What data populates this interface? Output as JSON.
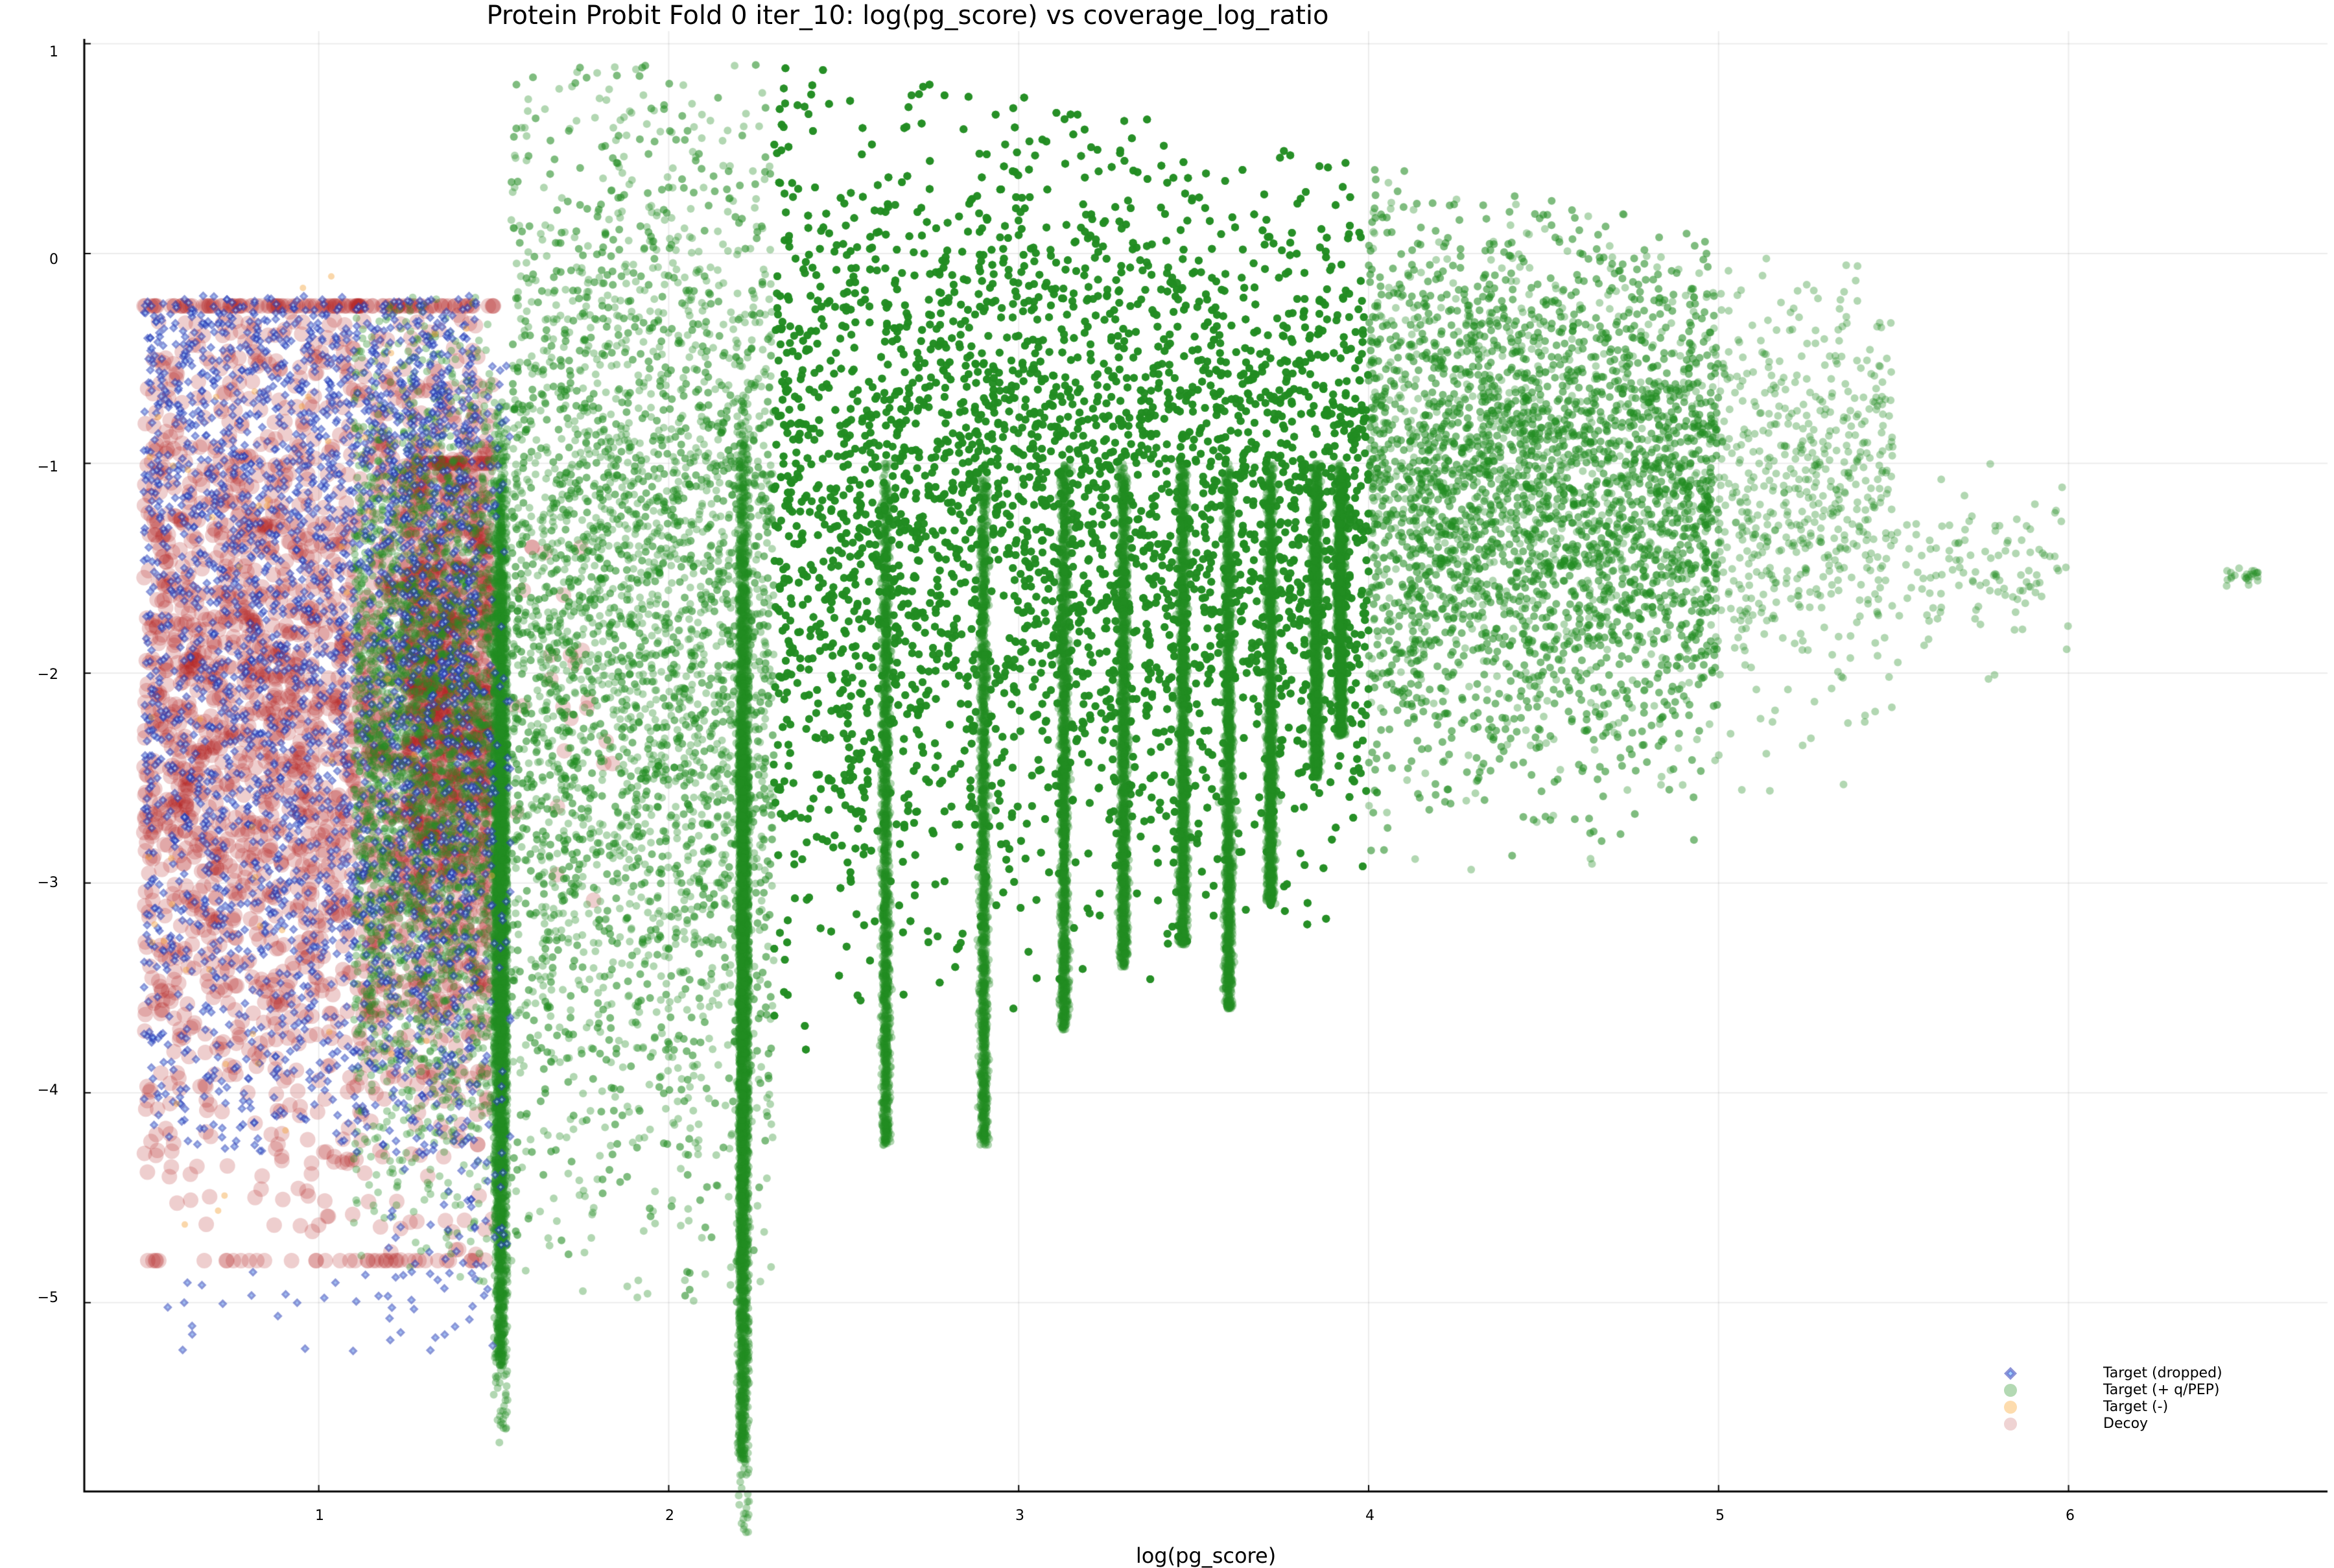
{
  "chart_data": {
    "type": "scatter",
    "title": "Protein Probit Fold 0 iter_10: log(pg_score) vs coverage_log_ratio",
    "xlabel": "log(pg_score)",
    "ylabel": "",
    "xlim": [
      0.33,
      6.74
    ],
    "ylim": [
      -5.9,
      1.06
    ],
    "x_ticks": [
      1,
      2,
      3,
      4,
      5,
      6
    ],
    "y_ticks": [
      1,
      0,
      -1,
      -2,
      -3,
      -4,
      -5
    ],
    "x_tick_labels": [
      "1",
      "2",
      "3",
      "4",
      "5",
      "6"
    ],
    "y_tick_labels": [
      "1",
      "0",
      "−1",
      "−2",
      "−3",
      "−4",
      "−5"
    ],
    "grid": true,
    "legend_position": "bottom-right",
    "series": [
      {
        "name": "Target (dropped)",
        "marker": "diamond",
        "color": "#2a3fb8",
        "alpha": 0.55,
        "approx_x_range": [
          0.5,
          1.6
        ],
        "approx_y_range": [
          -5.3,
          -0.1
        ],
        "clusters": [
          {
            "x": [
              0.5,
              1.45
            ],
            "y": [
              -4.3,
              -0.2
            ],
            "n": 2600
          },
          {
            "x": [
              1.2,
              1.55
            ],
            "y": [
              -5.0,
              -0.5
            ],
            "n": 350
          },
          {
            "x": [
              0.55,
              1.5
            ],
            "y": [
              -5.25,
              -4.85
            ],
            "n": 40
          }
        ]
      },
      {
        "name": "Target (+ q/PEP)",
        "marker": "circle",
        "color": "#228b22",
        "alpha": 0.35,
        "approx_x_range": [
          0.9,
          6.55
        ],
        "approx_y_range": [
          -5.75,
          0.85
        ],
        "clusters": [
          {
            "x": [
              1.1,
              1.5
            ],
            "y": [
              -4.5,
              -0.5
            ],
            "n": 3000
          },
          {
            "x": [
              1.5,
              1.54
            ],
            "y": [
              -5.3,
              -1.0
            ],
            "n": 2500
          },
          {
            "x": [
              1.55,
              2.3
            ],
            "y": [
              -4.6,
              0.6
            ],
            "n": 5000
          },
          {
            "x": [
              2.2,
              2.23
            ],
            "y": [
              -5.75,
              -1.0
            ],
            "n": 2200
          },
          {
            "x": [
              2.3,
              4.0
            ],
            "y": [
              -3.5,
              0.75
            ],
            "n": 30000
          },
          {
            "x": [
              4.0,
              5.0
            ],
            "y": [
              -2.6,
              0.1
            ],
            "n": 6000
          },
          {
            "x": [
              5.0,
              5.5
            ],
            "y": [
              -2.6,
              -0.3
            ],
            "n": 600
          },
          {
            "x": [
              5.5,
              6.0
            ],
            "y": [
              -2.05,
              -1.3
            ],
            "n": 120
          },
          {
            "x": [
              6.45,
              6.55
            ],
            "y": [
              -1.85,
              -1.65
            ],
            "n": 25
          }
        ],
        "stripes_x": [
          1.52,
          2.21,
          2.62,
          2.9,
          3.13,
          3.3,
          3.47,
          3.6,
          3.72,
          3.85,
          3.92
        ],
        "stripe_bottoms_y": [
          -5.3,
          -5.75,
          -4.25,
          -4.25,
          -3.7,
          -3.4,
          -3.3,
          -3.6,
          -3.1,
          -2.5,
          -2.3
        ]
      },
      {
        "name": "Target (-)",
        "marker": "circle",
        "color": "#f4a742",
        "alpha": 0.45,
        "approx_x_range": [
          0.5,
          1.5
        ],
        "approx_y_range": [
          -5.2,
          -0.08
        ],
        "clusters": [
          {
            "x": [
              0.5,
              1.5
            ],
            "y": [
              -4.3,
              -0.1
            ],
            "n": 60
          },
          {
            "x": [
              0.55,
              0.75
            ],
            "y": [
              -5.2,
              -4.2
            ],
            "n": 3
          }
        ]
      },
      {
        "name": "Decoy",
        "marker": "circle",
        "color": "#b22222",
        "alpha": 0.22,
        "approx_x_range": [
          0.5,
          1.85
        ],
        "approx_y_range": [
          -4.8,
          -0.2
        ],
        "clusters": [
          {
            "x": [
              0.5,
              1.5
            ],
            "y": [
              -4.8,
              -0.25
            ],
            "n": 2800
          },
          {
            "x": [
              1.25,
              1.5
            ],
            "y": [
              -3.9,
              -1.0
            ],
            "n": 700
          },
          {
            "x": [
              1.5,
              1.85
            ],
            "y": [
              -3.5,
              -1.4
            ],
            "n": 25
          }
        ]
      }
    ]
  },
  "legend": {
    "items": [
      {
        "label": "Target (dropped)",
        "icon": "diamond-icon"
      },
      {
        "label": "Target (+ q/PEP)",
        "icon": "circle-icon"
      },
      {
        "label": "Target (-)",
        "icon": "circle-icon"
      },
      {
        "label": "Decoy",
        "icon": "circle-icon"
      }
    ]
  }
}
